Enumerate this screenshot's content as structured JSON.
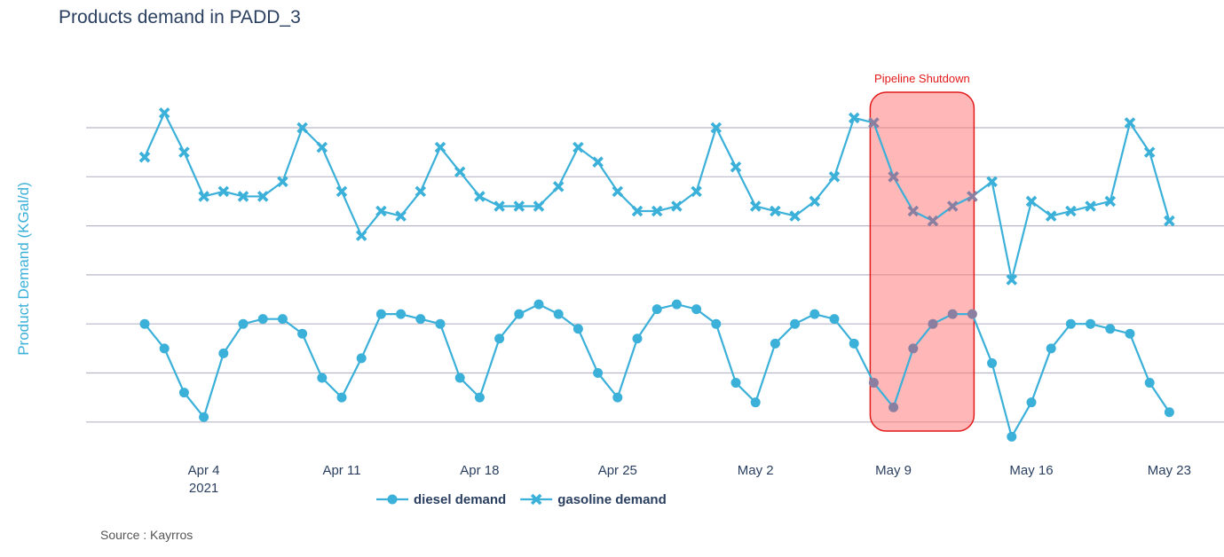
{
  "chart_data": {
    "type": "line",
    "title": "Products demand in PADD_3",
    "ylabel": "Product Demand (KGal/d)",
    "xlabel": "",
    "x_start": "2021-04-01",
    "x_end": "2021-05-23",
    "x_ticks": [
      {
        "date": "2021-04-04",
        "label": "Apr 4",
        "sublabel": "2021"
      },
      {
        "date": "2021-04-11",
        "label": "Apr 11",
        "sublabel": ""
      },
      {
        "date": "2021-04-18",
        "label": "Apr 18",
        "sublabel": ""
      },
      {
        "date": "2021-04-25",
        "label": "Apr 25",
        "sublabel": ""
      },
      {
        "date": "2021-05-02",
        "label": "May 2",
        "sublabel": ""
      },
      {
        "date": "2021-05-09",
        "label": "May 9",
        "sublabel": ""
      },
      {
        "date": "2021-05-16",
        "label": "May 16",
        "sublabel": ""
      },
      {
        "date": "2021-05-23",
        "label": "May 23",
        "sublabel": ""
      }
    ],
    "y_gridlines": 7,
    "y_tick_labels_visible": false,
    "grid": true,
    "legend_position": "bottom-center",
    "series": [
      {
        "name": "diesel demand",
        "marker": "circle",
        "color": "#3bb0d9",
        "values": [
          2.0,
          1.5,
          0.6,
          0.1,
          1.4,
          2.0,
          2.1,
          2.1,
          1.8,
          0.9,
          0.5,
          1.3,
          2.2,
          2.2,
          2.1,
          2.0,
          0.9,
          0.5,
          1.7,
          2.2,
          2.4,
          2.2,
          1.9,
          1.0,
          0.5,
          1.7,
          2.3,
          2.4,
          2.3,
          2.0,
          0.8,
          0.4,
          1.6,
          2.0,
          2.2,
          2.1,
          1.6,
          0.8,
          0.3,
          1.5,
          2.0,
          2.2,
          2.2,
          1.2,
          -0.3,
          0.4,
          1.5,
          2.0,
          2.0,
          1.9,
          1.8,
          0.8,
          0.2
        ]
      },
      {
        "name": "gasoline demand",
        "marker": "x",
        "color": "#3bb0d9",
        "values": [
          5.4,
          6.3,
          5.5,
          4.6,
          4.7,
          4.6,
          4.6,
          4.9,
          6.0,
          5.6,
          4.7,
          3.8,
          4.3,
          4.2,
          4.7,
          5.6,
          5.1,
          4.6,
          4.4,
          4.4,
          4.4,
          4.8,
          5.6,
          5.3,
          4.7,
          4.3,
          4.3,
          4.4,
          4.7,
          6.0,
          5.2,
          4.4,
          4.3,
          4.2,
          4.5,
          5.0,
          6.2,
          6.1,
          5.0,
          4.3,
          4.1,
          4.4,
          4.6,
          4.9,
          2.9,
          4.5,
          4.2,
          4.3,
          4.4,
          4.5,
          6.1,
          5.5,
          4.1
        ]
      }
    ],
    "annotation": {
      "label": "Pipeline Shutdown",
      "start": "2021-05-08",
      "end": "2021-05-13",
      "fill": "#ff7b7b",
      "stroke": "#e31a1a",
      "text_color": "#e31a1a"
    },
    "colors": {
      "line": "#3bb0d9",
      "inside_band": "#8a7fa0",
      "grid": "#b8b8c8",
      "title": "#2a3f5f"
    }
  },
  "footer": {
    "source": "Source : Kayrros"
  }
}
